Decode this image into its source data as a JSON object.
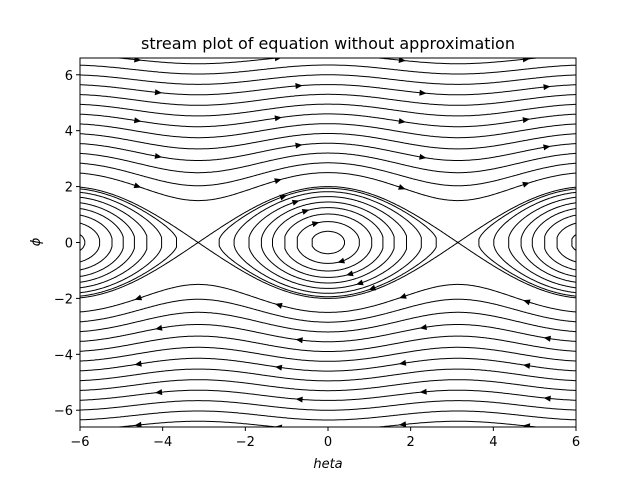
{
  "chart_data": {
    "type": "streamplot",
    "title": "stream plot of equation without approximation",
    "xlabel": "heta",
    "ylabel": "ϕ",
    "xlim": [
      -6,
      6
    ],
    "ylim": [
      -6.6,
      6.6
    ],
    "xticks": [
      -6,
      -4,
      -2,
      0,
      2,
      4,
      6
    ],
    "yticks": [
      -6,
      -4,
      -2,
      0,
      2,
      4,
      6
    ],
    "xtick_labels": [
      "−6",
      "−4",
      "−2",
      "0",
      "2",
      "4",
      "6"
    ],
    "ytick_labels": [
      "−6",
      "−4",
      "−2",
      "0",
      "2",
      "4",
      "6"
    ],
    "field": "pendulum: dθ/dt = ϕ, dϕ/dt = −sin θ",
    "centers": [
      [
        0,
        0
      ]
    ],
    "saddles": [
      [
        -3.14,
        0
      ],
      [
        3.14,
        0
      ]
    ],
    "grid": false,
    "color": "#000000"
  }
}
